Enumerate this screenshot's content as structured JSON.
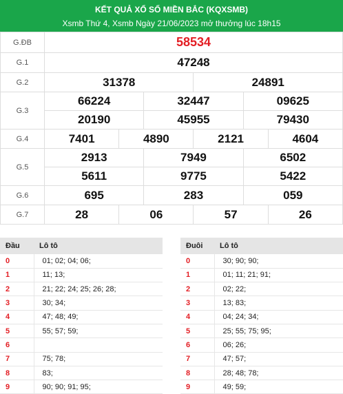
{
  "header": {
    "title": "KẾT QUẢ XỔ SỐ MIỀN BẮC (KQXSMB)",
    "subtitle": "Xsmb Thứ 4, Xsmb Ngày 21/06/2023 mở thưởng lúc 18h15"
  },
  "prizes": {
    "gdb": {
      "label": "G.ĐB",
      "values": [
        "58534"
      ]
    },
    "g1": {
      "label": "G.1",
      "values": [
        "47248"
      ]
    },
    "g2": {
      "label": "G.2",
      "values": [
        "31378",
        "24891"
      ]
    },
    "g3": {
      "label": "G.3",
      "values": [
        "66224",
        "32447",
        "09625",
        "20190",
        "45955",
        "79430"
      ]
    },
    "g4": {
      "label": "G.4",
      "values": [
        "7401",
        "4890",
        "2121",
        "4604"
      ]
    },
    "g5": {
      "label": "G.5",
      "values": [
        "2913",
        "7949",
        "6502",
        "5611",
        "9775",
        "5422"
      ]
    },
    "g6": {
      "label": "G.6",
      "values": [
        "695",
        "283",
        "059"
      ]
    },
    "g7": {
      "label": "G.7",
      "values": [
        "28",
        "06",
        "57",
        "26"
      ]
    }
  },
  "loto_head": {
    "col1": "Đầu",
    "col2": "Lô tô",
    "rows": [
      {
        "key": "0",
        "nums": "01; 02; 04; 06;"
      },
      {
        "key": "1",
        "nums": "11; 13;"
      },
      {
        "key": "2",
        "nums": "21; 22; 24; 25; 26; 28;"
      },
      {
        "key": "3",
        "nums": "30; 34;"
      },
      {
        "key": "4",
        "nums": "47; 48; 49;"
      },
      {
        "key": "5",
        "nums": "55; 57; 59;"
      },
      {
        "key": "6",
        "nums": ""
      },
      {
        "key": "7",
        "nums": "75; 78;"
      },
      {
        "key": "8",
        "nums": "83;"
      },
      {
        "key": "9",
        "nums": "90; 90; 91; 95;"
      }
    ]
  },
  "loto_tail": {
    "col1": "Đuôi",
    "col2": "Lô tô",
    "rows": [
      {
        "key": "0",
        "nums": "30; 90; 90;"
      },
      {
        "key": "1",
        "nums": "01; 11; 21; 91;"
      },
      {
        "key": "2",
        "nums": "02; 22;"
      },
      {
        "key": "3",
        "nums": "13; 83;"
      },
      {
        "key": "4",
        "nums": "04; 24; 34;"
      },
      {
        "key": "5",
        "nums": "25; 55; 75; 95;"
      },
      {
        "key": "6",
        "nums": "06; 26;"
      },
      {
        "key": "7",
        "nums": "47; 57;"
      },
      {
        "key": "8",
        "nums": "28; 48; 78;"
      },
      {
        "key": "9",
        "nums": "49; 59;"
      }
    ]
  },
  "colors": {
    "header_bg": "#1aa64a",
    "special_prize": "#e31e24",
    "loto_key": "#e31e24"
  }
}
